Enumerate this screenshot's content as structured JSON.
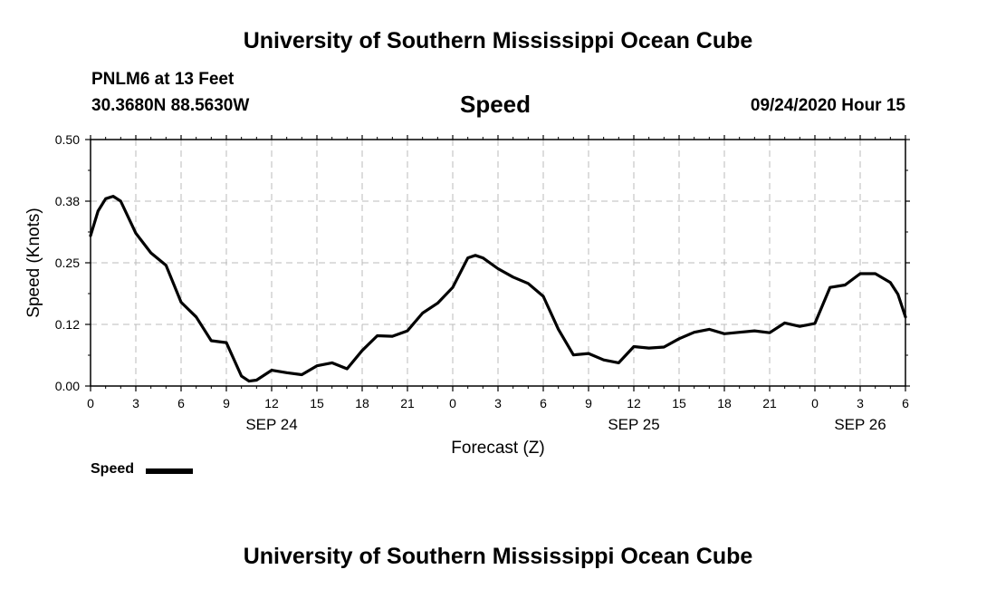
{
  "header": {
    "title": "University of Southern Mississippi Ocean Cube",
    "station": "PNLM6 at 13 Feet",
    "coords": "30.3680N 88.5630W",
    "variable": "Speed",
    "timestamp": "09/24/2020 Hour 15"
  },
  "footer": {
    "title": "University of Southern Mississippi Ocean Cube"
  },
  "legend": {
    "label": "Speed"
  },
  "chart_data": {
    "type": "line",
    "title": "Speed",
    "xlabel": "Forecast (Z)",
    "ylabel": "Speed (Knots)",
    "ylim": [
      0,
      0.5
    ],
    "xlim": [
      0,
      54
    ],
    "x_units": "forecast hours from SEP 24 00Z",
    "yticks": [
      "0.00",
      "0.12",
      "0.25",
      "0.38",
      "0.50"
    ],
    "xticks": [
      "0",
      "3",
      "6",
      "9",
      "12",
      "15",
      "18",
      "21",
      "0",
      "3",
      "6",
      "9",
      "12",
      "15",
      "18",
      "21",
      "0",
      "3",
      "6"
    ],
    "date_labels": [
      {
        "label": "SEP 24",
        "hour": 12
      },
      {
        "label": "SEP 25",
        "hour": 36
      },
      {
        "label": "SEP 26",
        "hour": 51
      }
    ],
    "grid": true,
    "series": [
      {
        "name": "Speed",
        "x": [
          0,
          0.5,
          1,
          1.5,
          2,
          3,
          4,
          5,
          6,
          7,
          8,
          9,
          10,
          10.5,
          11,
          12,
          13,
          14,
          15,
          16,
          17,
          18,
          19,
          20,
          21,
          22,
          23,
          24,
          25,
          25.5,
          26,
          27,
          28,
          29,
          30,
          31,
          32,
          33,
          34,
          35,
          36,
          37,
          38,
          39,
          40,
          41,
          42,
          43,
          44,
          45,
          46,
          47,
          48,
          49,
          50,
          51,
          52,
          53,
          53.5,
          54
        ],
        "values": [
          0.305,
          0.355,
          0.38,
          0.385,
          0.375,
          0.31,
          0.27,
          0.245,
          0.17,
          0.14,
          0.092,
          0.088,
          0.02,
          0.01,
          0.012,
          0.032,
          0.027,
          0.023,
          0.041,
          0.047,
          0.035,
          0.072,
          0.102,
          0.101,
          0.112,
          0.148,
          0.168,
          0.2,
          0.26,
          0.265,
          0.26,
          0.238,
          0.221,
          0.208,
          0.182,
          0.115,
          0.063,
          0.066,
          0.053,
          0.047,
          0.08,
          0.077,
          0.079,
          0.096,
          0.109,
          0.115,
          0.106,
          0.109,
          0.112,
          0.108,
          0.128,
          0.121,
          0.127,
          0.2,
          0.205,
          0.228,
          0.228,
          0.21,
          0.186,
          0.14
        ]
      }
    ]
  }
}
